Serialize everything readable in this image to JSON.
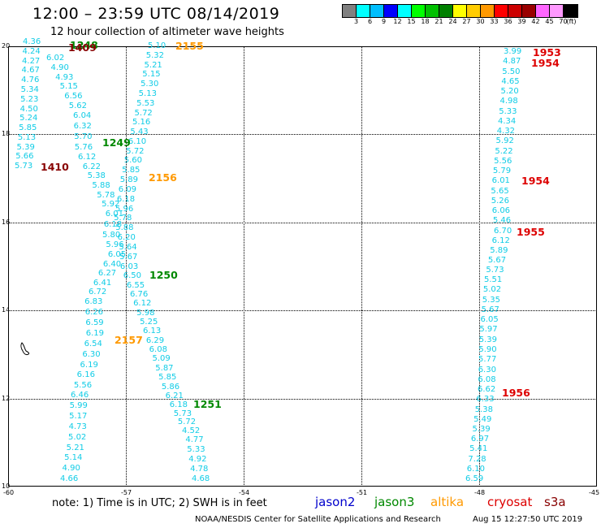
{
  "title": "12:00 – 23:59 UTC 08/14/2019",
  "subtitle": "12 hour collection of altimeter wave heights",
  "legend": {
    "colors": [
      "#808080",
      "#00ffff",
      "#00bfff",
      "#0000ff",
      "#00ffff",
      "#00ff00",
      "#00c000",
      "#008000",
      "#ffff00",
      "#ffcc00",
      "#ff9900",
      "#ff0000",
      "#cc0000",
      "#990000",
      "#ff66ff",
      "#ff99ff",
      "#000000"
    ],
    "labels": [
      "3",
      "6",
      "9",
      "12",
      "15",
      "18",
      "21",
      "24",
      "27",
      "30",
      "33",
      "36",
      "39",
      "42",
      "45",
      "70",
      "(ft)"
    ]
  },
  "axes": {
    "x_ticks": [
      "-60",
      "-57",
      "-54",
      "-51",
      "-48",
      "-45"
    ],
    "y_ticks": [
      "20",
      "18",
      "16",
      "14",
      "12",
      "10"
    ]
  },
  "note": "note:  1) Time is in UTC;  2) SWH is in feet",
  "satellites": [
    {
      "name": "jason2",
      "color": "#0000cc"
    },
    {
      "name": "jason3",
      "color": "#008800"
    },
    {
      "name": "altika",
      "color": "#ff9900"
    },
    {
      "name": "cryosat",
      "color": "#dd0000"
    },
    {
      "name": "s3a",
      "color": "#880000"
    }
  ],
  "footer_center": "NOAA/NESDIS Center for Satellite Applications and Research",
  "footer_right": "Aug 15 12:27:50 UTC 2019",
  "tracks": [
    {
      "id": "t1409",
      "values": [
        "4.36",
        "4.24",
        "4.27",
        "4.67",
        "4.76",
        "5.34",
        "5.23",
        "4.50",
        "5.24",
        "5.85",
        "5.13",
        "5.39",
        "5.66",
        "5.73"
      ]
    },
    {
      "id": "t1249a",
      "values": [
        "6.02",
        "4.90",
        "4.93",
        "5.15",
        "6.56",
        "5.62",
        "6.04",
        "6.32",
        "5.70",
        "5.76",
        "6.12",
        "6.22",
        "5.38",
        "5.88",
        "5.78",
        "5.92",
        "6.01",
        "6.18",
        "5.80",
        "5.96",
        "6.05",
        "6.40",
        "6.27",
        "6.41",
        "6.72",
        "6.83",
        "6.26",
        "6.59",
        "6.19",
        "6.54",
        "6.30",
        "6.19",
        "6.16",
        "5.56",
        "6.46",
        "5.99",
        "5.17",
        "4.73",
        "5.02",
        "5.21",
        "5.14",
        "4.90",
        "4.66"
      ]
    },
    {
      "id": "t2155",
      "values": [
        "5.10",
        "5.32",
        "5.21",
        "5.15",
        "5.30",
        "5.13",
        "5.53",
        "5.72",
        "5.16",
        "5.43",
        "6.10",
        "5.72",
        "5.60",
        "5.85",
        "5.89",
        "6.09",
        "6.18",
        "5.96",
        "5.78",
        "5.88",
        "6.20",
        "5.64",
        "5.67",
        "6.03",
        "6.50",
        "6.55",
        "6.76",
        "6.12",
        "5.98",
        "5.25",
        "6.13",
        "6.29",
        "6.08",
        "5.09",
        "5.87",
        "5.85",
        "5.86",
        "6.21",
        "6.18",
        "5.73",
        "5.72",
        "4.52",
        "4.77",
        "5.33",
        "4.92",
        "4.78",
        "4.68"
      ]
    },
    {
      "id": "t1953",
      "values": [
        "3.99",
        "4.87",
        "5.50",
        "4.65",
        "5.20",
        "4.98",
        "5.33",
        "4.34",
        "4.32",
        "5.92",
        "5.22",
        "5.56",
        "5.79",
        "6.01",
        "5.65",
        "5.26",
        "6.06",
        "5.46",
        "6.70",
        "6.12",
        "5.89",
        "5.67",
        "5.73",
        "5.51",
        "5.02",
        "5.35",
        "5.67",
        "6.05",
        "5.97",
        "5.39",
        "5.90",
        "5.77",
        "6.30",
        "6.08",
        "6.62",
        "6.33",
        "5.38",
        "5.49",
        "5.39",
        "6.97",
        "5.41",
        "7.28",
        "6.10",
        "6.59"
      ]
    }
  ],
  "time_labels": [
    {
      "text": "1248",
      "color": "#008800"
    },
    {
      "text": "1409",
      "color": "#880000"
    },
    {
      "text": "1249",
      "color": "#008800"
    },
    {
      "text": "1410",
      "color": "#880000"
    },
    {
      "text": "2155",
      "color": "#ff9900"
    },
    {
      "text": "2156",
      "color": "#ff9900"
    },
    {
      "text": "1250",
      "color": "#008800"
    },
    {
      "text": "2157",
      "color": "#ff9900"
    },
    {
      "text": "1251",
      "color": "#008800"
    },
    {
      "text": "1953",
      "color": "#dd0000"
    },
    {
      "text": "1954",
      "color": "#dd0000"
    },
    {
      "text": "1954",
      "color": "#dd0000"
    },
    {
      "text": "1955",
      "color": "#dd0000"
    },
    {
      "text": "1956",
      "color": "#dd0000"
    }
  ]
}
